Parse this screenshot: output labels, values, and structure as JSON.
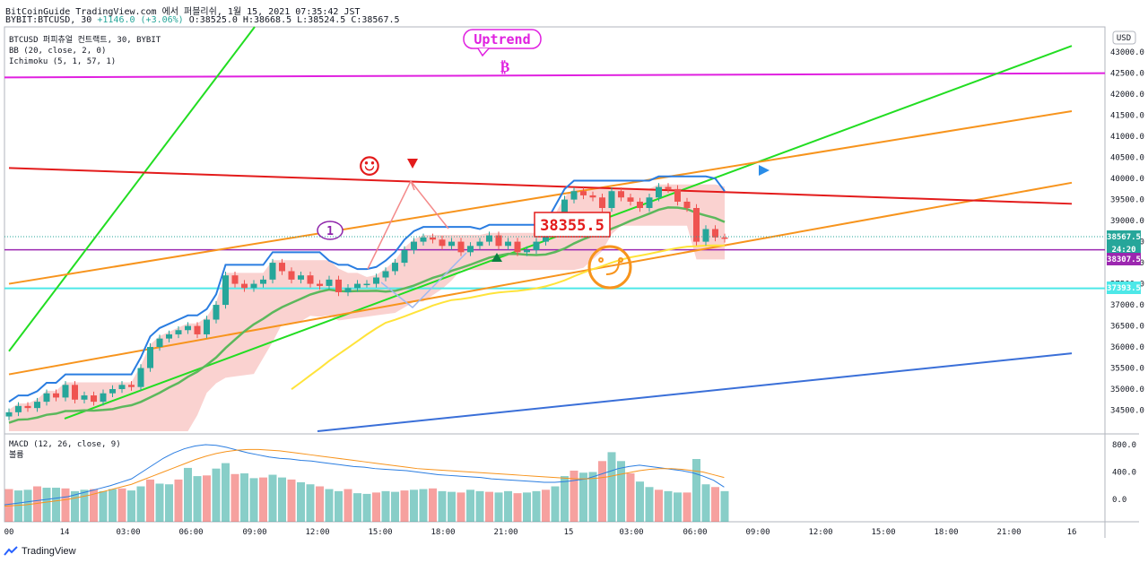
{
  "header": {
    "line1": "BitCoinGuide TradingView.com 에서 퍼블리쉬, 1월 15, 2021 07:35:42 JST",
    "symbol": "BYBIT:BTCUSD, 30",
    "change": "+1146.0 (+3.06%)",
    "ohlc": "O:38525.0 H:38668.5 L:38524.5 C:38567.5"
  },
  "legend": {
    "main": "BTCUSD 퍼피츄얼 컨트랙트, 30, BYBIT",
    "bb": "BB (20, close, 2, 0)",
    "ichimoku": "Ichimoku (5, 1, 57, 1)",
    "macd": "MACD (12, 26, close, 9)",
    "macd_sub": "볼륨"
  },
  "annotations": {
    "uptrend": "Uptrend",
    "number_one": "1",
    "price_box": "38355.5",
    "smiley": "☺",
    "target": "₿"
  },
  "price_labels": {
    "currency": "USD",
    "last": "38567.5",
    "countdown": "24:20",
    "purple": "38307.5",
    "cyan": "37393.5"
  },
  "footer": {
    "brand": "TradingView"
  },
  "colors": {
    "up": "#26a69a",
    "down": "#ef5350",
    "bb": "#2a7de1",
    "cloud": "#f7b4b0",
    "green": "#22dd22",
    "orange": "#f7941d",
    "red": "#e31b1b",
    "magenta": "#e020e0",
    "purple": "#9c27b0",
    "cyan": "#4de8e8",
    "blue": "#3a6fd8",
    "yellow": "#ffe33a"
  },
  "chart_data": {
    "type": "candlestick",
    "instrument": "BYBIT:BTCUSD",
    "timeframe": "30",
    "ylim": [
      34000,
      43600
    ],
    "y_ticks": [
      34500,
      35000,
      35500,
      36000,
      36500,
      37000,
      37500,
      38000,
      38500,
      39000,
      39500,
      40000,
      40500,
      41000,
      41500,
      42000,
      42500,
      43000
    ],
    "x_ticks": [
      "00",
      "14",
      "03:00",
      "06:00",
      "09:00",
      "12:00",
      "15:00",
      "18:00",
      "21:00",
      "15",
      "03:00",
      "06:00",
      "09:00",
      "12:00",
      "15:00",
      "18:00",
      "21:00",
      "16"
    ],
    "close_series": [
      34450,
      34600,
      34550,
      34700,
      34900,
      34800,
      35100,
      34750,
      34850,
      34700,
      34900,
      35000,
      35100,
      35050,
      35500,
      36000,
      36200,
      36300,
      36400,
      36500,
      36300,
      36650,
      37000,
      37700,
      37500,
      37400,
      37500,
      37600,
      38000,
      37800,
      37600,
      37700,
      37500,
      37450,
      37600,
      37300,
      37400,
      37500,
      37500,
      37650,
      37800,
      38000,
      38300,
      38500,
      38600,
      38550,
      38400,
      38500,
      38250,
      38400,
      38500,
      38650,
      38400,
      38500,
      38250,
      38300,
      38500,
      38700,
      39100,
      39500,
      39700,
      39600,
      39550,
      39300,
      39700,
      39550,
      39450,
      39300,
      39550,
      39800,
      39750,
      39450,
      39300,
      38500,
      38800,
      38600,
      38567.5
    ],
    "macd_histogram": [
      150,
      130,
      140,
      190,
      170,
      170,
      160,
      120,
      140,
      150,
      120,
      150,
      160,
      130,
      190,
      290,
      230,
      220,
      290,
      460,
      340,
      350,
      450,
      530,
      370,
      380,
      310,
      320,
      360,
      320,
      290,
      250,
      220,
      190,
      150,
      120,
      150,
      90,
      80,
      100,
      120,
      110,
      130,
      140,
      150,
      160,
      120,
      110,
      100,
      140,
      120,
      110,
      100,
      120,
      90,
      100,
      120,
      140,
      190,
      340,
      420,
      390,
      400,
      560,
      690,
      560,
      380,
      260,
      180,
      140,
      120,
      100,
      100,
      590,
      220,
      180,
      120
    ],
    "macd_line": [
      -80,
      -60,
      -40,
      -20,
      0,
      20,
      40,
      80,
      120,
      160,
      200,
      250,
      300,
      400,
      500,
      600,
      680,
      740,
      780,
      800,
      790,
      760,
      720,
      680,
      650,
      620,
      600,
      590,
      570,
      560,
      540,
      520,
      500,
      480,
      470,
      450,
      440,
      430,
      420,
      400,
      380,
      360,
      350,
      340,
      330,
      320,
      300,
      290,
      280,
      270,
      260,
      250,
      250,
      260,
      280,
      300,
      350,
      400,
      450,
      480,
      500,
      480,
      460,
      440,
      420,
      390,
      340,
      280,
      180
    ],
    "signal_line": [
      -100,
      -90,
      -80,
      -60,
      -40,
      -20,
      0,
      30,
      60,
      100,
      140,
      180,
      220,
      280,
      340,
      400,
      460,
      520,
      580,
      630,
      670,
      700,
      720,
      730,
      730,
      720,
      710,
      690,
      670,
      650,
      630,
      610,
      590,
      570,
      550,
      530,
      510,
      490,
      470,
      450,
      440,
      430,
      420,
      410,
      400,
      390,
      380,
      370,
      360,
      350,
      340,
      330,
      320,
      310,
      300,
      300,
      310,
      330,
      360,
      390,
      420,
      440,
      450,
      450,
      440,
      420,
      400,
      360,
      320
    ],
    "trendlines": [
      {
        "name": "upper-green-channel",
        "from": [
          "00",
          35900
        ],
        "to": [
          "09:00",
          43600
        ]
      },
      {
        "name": "lower-green-channel",
        "from": [
          "14",
          34300
        ],
        "to": [
          "16",
          43150
        ]
      },
      {
        "name": "upper-orange-channel",
        "from": [
          "00",
          37500
        ],
        "to": [
          "16",
          41600
        ]
      },
      {
        "name": "lower-orange-channel",
        "from": [
          "00",
          35350
        ],
        "to": [
          "16",
          39900
        ]
      },
      {
        "name": "red-resistance",
        "from": [
          "00",
          40250
        ],
        "to": [
          "16",
          39400
        ]
      },
      {
        "name": "blue-support",
        "from": [
          "12:00",
          34000
        ],
        "to": [
          "16",
          35850
        ]
      }
    ],
    "horizontal_levels": [
      42400,
      38307.5,
      37393.5
    ]
  }
}
